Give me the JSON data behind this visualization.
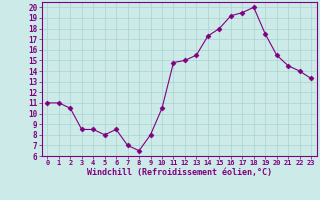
{
  "x": [
    0,
    1,
    2,
    3,
    4,
    5,
    6,
    7,
    8,
    9,
    10,
    11,
    12,
    13,
    14,
    15,
    16,
    17,
    18,
    19,
    20,
    21,
    22,
    23
  ],
  "y": [
    11,
    11,
    10.5,
    8.5,
    8.5,
    8,
    8.5,
    7,
    6.5,
    8,
    10.5,
    14.8,
    15,
    15.5,
    17.3,
    18,
    19.2,
    19.5,
    20,
    17.5,
    15.5,
    14.5,
    14,
    13.3
  ],
  "line_color": "#800080",
  "marker": "D",
  "marker_size": 2.5,
  "background_color": "#cceae8",
  "grid_color": "#aad4d0",
  "xlabel": "Windchill (Refroidissement éolien,°C)",
  "xlim": [
    -0.5,
    23.5
  ],
  "ylim": [
    6,
    20.5
  ],
  "yticks": [
    6,
    7,
    8,
    9,
    10,
    11,
    12,
    13,
    14,
    15,
    16,
    17,
    18,
    19,
    20
  ],
  "xticks": [
    0,
    1,
    2,
    3,
    4,
    5,
    6,
    7,
    8,
    9,
    10,
    11,
    12,
    13,
    14,
    15,
    16,
    17,
    18,
    19,
    20,
    21,
    22,
    23
  ],
  "tick_label_size": 5.5,
  "xlabel_size": 6,
  "tick_color": "#800080",
  "label_color": "#800080",
  "spine_color": "#800080"
}
